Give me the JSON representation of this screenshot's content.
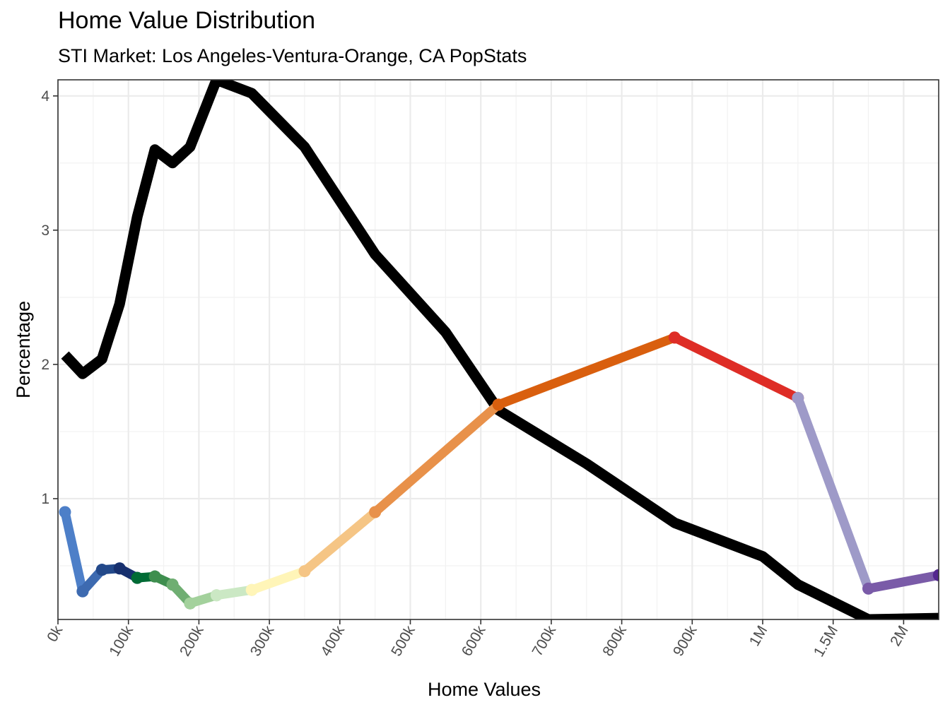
{
  "chart_data": {
    "type": "line",
    "title": "Home Value Distribution",
    "subtitle": "STI Market: Los Angeles-Ventura-Orange, CA PopStats",
    "xlabel": "Home Values",
    "ylabel": "Percentage",
    "x_ticks": [
      "0k",
      "100k",
      "200k",
      "300k",
      "400k",
      "500k",
      "600k",
      "700k",
      "800k",
      "900k",
      "1M",
      "1.5M",
      "2M"
    ],
    "y_ticks": [
      "1",
      "2",
      "3",
      "4"
    ],
    "ylim": [
      0.1,
      4.12
    ],
    "grid": true,
    "legend": "none",
    "series": [
      {
        "color": "#000000",
        "x": [
          10000,
          35000,
          62500,
          87500,
          112500,
          137500,
          162500,
          187500,
          225000,
          275000,
          350000,
          450000,
          550000,
          625000,
          750000,
          875000,
          1000000,
          1250000,
          1750000,
          2250000
        ],
        "y": [
          2.07,
          1.93,
          2.04,
          2.45,
          3.1,
          3.6,
          3.5,
          3.62,
          4.12,
          4.02,
          3.62,
          2.82,
          2.24,
          1.66,
          1.26,
          0.82,
          0.57,
          0.36,
          0.1,
          0.11
        ]
      },
      {
        "color": "#4d7fc8",
        "points_shown": true,
        "x": [
          10000,
          35000
        ],
        "y": [
          0.9,
          0.31
        ]
      },
      {
        "color": "#3d6ab0",
        "points_shown": true,
        "x": [
          35000,
          62500
        ],
        "y": [
          0.31,
          0.47
        ]
      },
      {
        "color": "#23498a",
        "points_shown": true,
        "x": [
          62500,
          87500
        ],
        "y": [
          0.47,
          0.48
        ]
      },
      {
        "color": "#17306e",
        "points_shown": true,
        "x": [
          87500,
          112500
        ],
        "y": [
          0.48,
          0.41
        ]
      },
      {
        "color": "#006b35",
        "points_shown": true,
        "x": [
          112500,
          137500
        ],
        "y": [
          0.41,
          0.42
        ]
      },
      {
        "color": "#3e8e4e",
        "points_shown": true,
        "x": [
          137500,
          162500
        ],
        "y": [
          0.42,
          0.36
        ]
      },
      {
        "color": "#6fae72",
        "points_shown": true,
        "x": [
          162500,
          187500
        ],
        "y": [
          0.36,
          0.22
        ]
      },
      {
        "color": "#a3d19c",
        "points_shown": true,
        "x": [
          187500,
          225000
        ],
        "y": [
          0.22,
          0.28
        ]
      },
      {
        "color": "#cbe8c4",
        "points_shown": true,
        "x": [
          225000,
          275000
        ],
        "y": [
          0.28,
          0.32
        ]
      },
      {
        "color": "#fff5b8",
        "points_shown": true,
        "x": [
          275000,
          350000
        ],
        "y": [
          0.32,
          0.46
        ]
      },
      {
        "color": "#f5c585",
        "points_shown": true,
        "x": [
          350000,
          450000
        ],
        "y": [
          0.46,
          0.9
        ]
      },
      {
        "color": "#e8914a",
        "points_shown": true,
        "x": [
          450000,
          625000
        ],
        "y": [
          0.9,
          1.7
        ]
      },
      {
        "color": "#d95f0e",
        "points_shown": true,
        "x": [
          625000,
          875000
        ],
        "y": [
          1.7,
          2.2
        ]
      },
      {
        "color": "#de2d26",
        "points_shown": true,
        "x": [
          875000,
          1250000
        ],
        "y": [
          2.2,
          1.75
        ]
      },
      {
        "color": "#9e9ac8",
        "points_shown": true,
        "x": [
          1250000,
          1750000
        ],
        "y": [
          1.75,
          0.33
        ]
      },
      {
        "color": "#7a5ba8",
        "points_shown": true,
        "x": [
          1750000,
          2250000
        ],
        "y": [
          0.33,
          0.43
        ]
      },
      {
        "color": "#54278f",
        "points_shown": true,
        "x": [
          2250000
        ],
        "y": [
          0.43
        ]
      }
    ]
  }
}
